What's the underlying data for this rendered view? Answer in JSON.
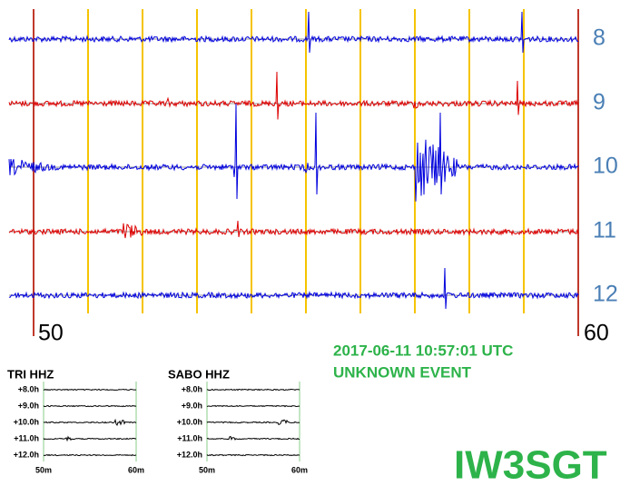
{
  "main": {
    "row_labels": [
      "8",
      "9",
      "10",
      "11",
      "12"
    ],
    "start_label": "50",
    "end_label": "60"
  },
  "event": {
    "timestamp": "2017-06-11 10:57:01 UTC",
    "type": "UNKNOWN EVENT"
  },
  "stations": [
    {
      "name": "TRI HHZ",
      "row_labels": [
        "+8.0h",
        "+9.0h",
        "+10.0h",
        "+11.0h",
        "+12.0h"
      ],
      "x_labels": [
        "50m",
        "60m"
      ]
    },
    {
      "name": "SABO HHZ",
      "row_labels": [
        "+8.0h",
        "+9.0h",
        "+10.0h",
        "+11.0h",
        "+12.0h"
      ],
      "x_labels": [
        "50m",
        "60m"
      ]
    }
  ],
  "watermark": "IW3SGT"
}
